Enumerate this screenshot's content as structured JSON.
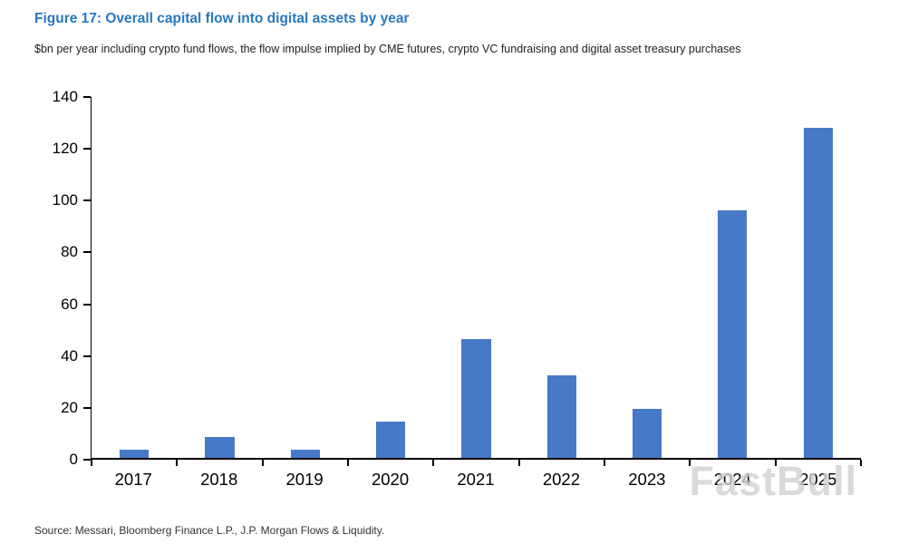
{
  "page": {
    "title": "Figure 17: Overall capital flow into digital assets by year",
    "subtitle": "$bn per year including crypto fund flows, the flow impulse implied by CME futures, crypto VC fundraising and digital asset treasury purchases",
    "source": "Source: Messari, Bloomberg Finance L.P., J.P. Morgan Flows & Liquidity.",
    "watermark": "FastBull"
  },
  "colors": {
    "title": "#2878bd",
    "bar": "#4679c8",
    "axis": "#000000",
    "watermark": "#d2d2d2"
  },
  "chart_data": {
    "type": "bar",
    "title": "Figure 17: Overall capital flow into digital assets by year",
    "subtitle": "$bn per year including crypto fund flows, the flow impulse implied by CME futures, crypto VC fundraising and digital asset treasury purchases",
    "categories": [
      "2017",
      "2018",
      "2019",
      "2020",
      "2021",
      "2022",
      "2023",
      "2024",
      "2025"
    ],
    "values": [
      3,
      8,
      3,
      14,
      46,
      32,
      19,
      96,
      128
    ],
    "xlabel": "",
    "ylabel": "$bn per year",
    "ylim": [
      0,
      140
    ],
    "ytick_step": 20,
    "grid": false,
    "legend": "none",
    "source": "Source: Messari, Bloomberg Finance L.P., J.P. Morgan Flows & Liquidity."
  }
}
